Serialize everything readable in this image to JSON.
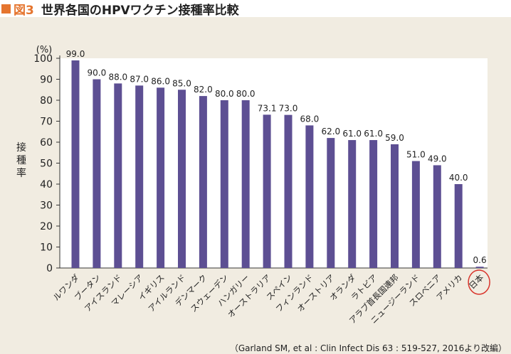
{
  "figure": {
    "label": "図3",
    "title": "世界各国のHPVワクチン接種率比較",
    "source": "（Garland SM, et al : Clin Infect Dis 63 : 519-527, 2016より改編）"
  },
  "colors": {
    "bar": "#5d4f93",
    "accent": "#e5752f",
    "highlight_circle": "#d9342b",
    "panel_bg": "#f1ece1",
    "plot_bg": "#ffffff"
  },
  "chart_data": {
    "type": "bar",
    "title": "世界各国のHPVワクチン接種率比較",
    "ylabel": "接種率",
    "yunit": "(%)",
    "ylim": [
      0,
      100
    ],
    "yticks": [
      0,
      10,
      20,
      30,
      40,
      50,
      60,
      70,
      80,
      90,
      100
    ],
    "categories": [
      "ルワンダ",
      "ブータン",
      "アイスランド",
      "マレーシア",
      "イギリス",
      "アイルランド",
      "デンマーク",
      "スウェーデン",
      "ハンガリー",
      "オーストラリア",
      "スペイン",
      "フィンランド",
      "オーストリア",
      "オランダ",
      "ラトビア",
      "アラブ首長国連邦",
      "ニュージーランド",
      "スロベニア",
      "アメリカ",
      "日本"
    ],
    "values": [
      99.0,
      90.0,
      88.0,
      87.0,
      86.0,
      85.0,
      82.0,
      80.0,
      80.0,
      73.1,
      73.0,
      68.0,
      62.0,
      61.0,
      61.0,
      59.0,
      51.0,
      49.0,
      40.0,
      0.6
    ],
    "value_labels": [
      "99.0",
      "90.0",
      "88.0",
      "87.0",
      "86.0",
      "85.0",
      "82.0",
      "80.0",
      "80.0",
      "73.1",
      "73.0",
      "68.0",
      "62.0",
      "61.0",
      "61.0",
      "59.0",
      "51.0",
      "49.0",
      "40.0",
      "0.6"
    ],
    "highlight": "日本",
    "grid": false
  }
}
